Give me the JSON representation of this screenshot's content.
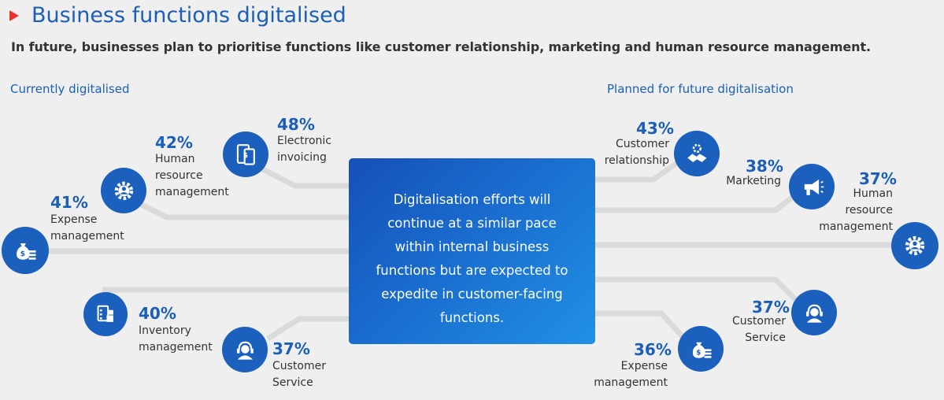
{
  "header": {
    "title": "Business functions digitalised",
    "subtitle": "In future, businesses plan to prioritise functions like customer relationship, marketing and human resource management."
  },
  "sections": {
    "current_label": "Currently digitalised",
    "future_label": "Planned for future digitalisation"
  },
  "center_text": "Digitalisation efforts will continue at a similar pace within internal business functions but are expected to expedite in customer-facing functions.",
  "current": [
    {
      "pct": "48%",
      "label": "Electronic invoicing",
      "icon": "invoice-icon"
    },
    {
      "pct": "42%",
      "label": "Human resource management",
      "icon": "gear-person-icon"
    },
    {
      "pct": "41%",
      "label": "Expense management",
      "icon": "money-bag-icon"
    },
    {
      "pct": "40%",
      "label": "Inventory management",
      "icon": "inventory-icon"
    },
    {
      "pct": "37%",
      "label": "Customer Service",
      "icon": "headset-icon"
    }
  ],
  "future": [
    {
      "pct": "43%",
      "label": "Customer relationship",
      "icon": "handshake-icon"
    },
    {
      "pct": "38%",
      "label": "Marketing",
      "icon": "megaphone-icon"
    },
    {
      "pct": "37%",
      "label": "Human resource management",
      "icon": "gear-person-icon"
    },
    {
      "pct": "37%",
      "label": "Customer Service",
      "icon": "headset-icon"
    },
    {
      "pct": "36%",
      "label": "Expense management",
      "icon": "money-bag-icon"
    }
  ],
  "colors": {
    "accent": "#1c60bd",
    "marker": "#e8322d",
    "connector": "#dadada"
  }
}
